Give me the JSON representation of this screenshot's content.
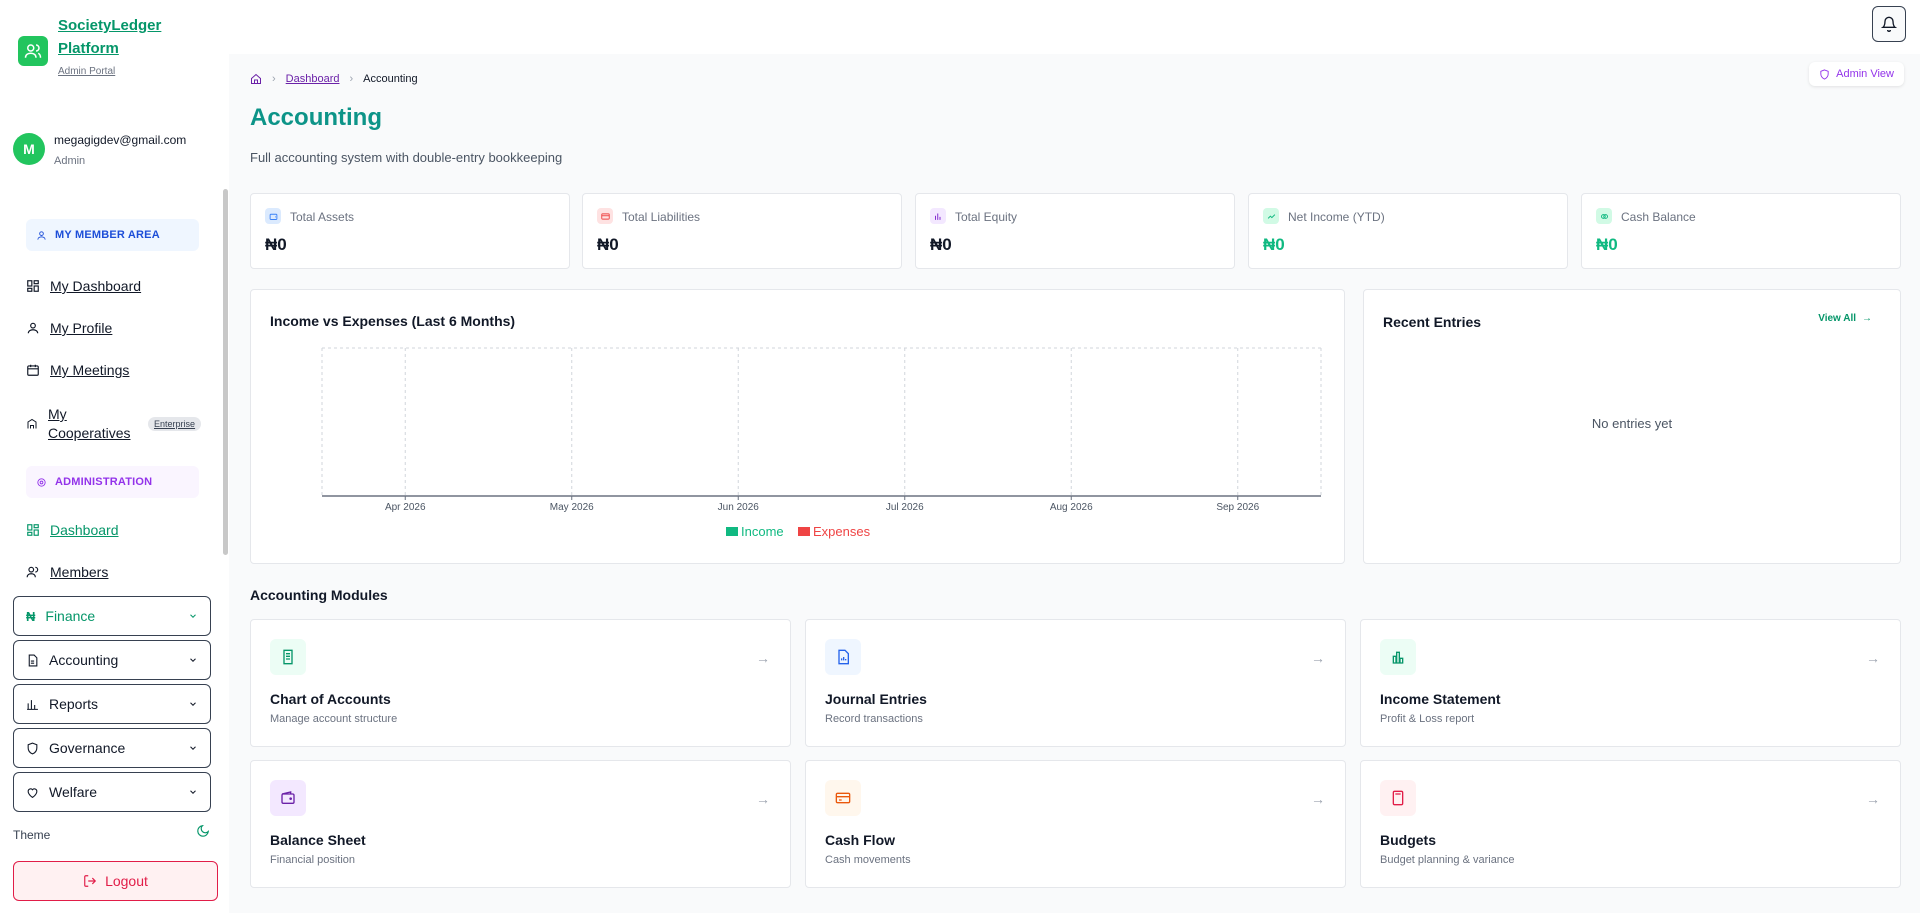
{
  "brand": {
    "title": "SocietyLedger Platform",
    "subtitle": "Admin Portal"
  },
  "user": {
    "initial": "M",
    "email": "megagigdev@gmail.com",
    "role": "Admin"
  },
  "sidebar": {
    "member_section": "MY MEMBER AREA",
    "member_items": [
      {
        "label": "My Dashboard",
        "icon": "grid-icon"
      },
      {
        "label": "My Profile",
        "icon": "user-icon"
      },
      {
        "label": "My Meetings",
        "icon": "calendar-icon"
      },
      {
        "label": "My Cooperatives",
        "icon": "building-icon",
        "badge": "Enterprise"
      }
    ],
    "admin_section": "ADMINISTRATION",
    "admin_items": [
      {
        "label": "Dashboard",
        "icon": "grid-icon"
      },
      {
        "label": "Members",
        "icon": "users-icon"
      }
    ],
    "dropdowns": [
      {
        "label": "Finance",
        "icon": "naira-icon"
      },
      {
        "label": "Accounting",
        "icon": "file-icon"
      },
      {
        "label": "Reports",
        "icon": "bar-chart-icon"
      },
      {
        "label": "Governance",
        "icon": "shield-icon"
      },
      {
        "label": "Welfare",
        "icon": "heart-icon"
      }
    ],
    "theme_label": "Theme",
    "logout_label": "Logout"
  },
  "header": {
    "admin_view": "Admin View"
  },
  "breadcrumb": {
    "home_icon": "home-icon",
    "parent": "Dashboard",
    "current": "Accounting"
  },
  "page": {
    "title": "Accounting",
    "subtitle": "Full accounting system with double-entry bookkeeping"
  },
  "stats": [
    {
      "label": "Total Assets",
      "value": "₦0",
      "color": "#3b82f6",
      "icon": "wallet-icon"
    },
    {
      "label": "Total Liabilities",
      "value": "₦0",
      "color": "#ef4444",
      "icon": "card-icon"
    },
    {
      "label": "Total Equity",
      "value": "₦0",
      "color": "#7e22ce",
      "icon": "bar-chart-icon"
    },
    {
      "label": "Net Income (YTD)",
      "value": "₦0",
      "color": "#10b981",
      "icon": "trending-up-icon"
    },
    {
      "label": "Cash Balance",
      "value": "₦0",
      "color": "#10b981",
      "icon": "cash-icon"
    }
  ],
  "chart_data": {
    "type": "bar",
    "title": "Income vs Expenses (Last 6 Months)",
    "categories": [
      "Apr 2026",
      "May 2026",
      "Jun 2026",
      "Jul 2026",
      "Aug 2026",
      "Sep 2026"
    ],
    "series": [
      {
        "name": "Income",
        "values": [
          0,
          0,
          0,
          0,
          0,
          0
        ],
        "color": "#10b981"
      },
      {
        "name": "Expenses",
        "values": [
          0,
          0,
          0,
          0,
          0,
          0
        ],
        "color": "#ef4444"
      }
    ],
    "xlabel": "",
    "ylabel": "",
    "grid": true,
    "legend": "bottom-center"
  },
  "recent": {
    "title": "Recent Entries",
    "view_all": "View All",
    "empty": "No entries yet"
  },
  "modules": {
    "title": "Accounting Modules",
    "items": [
      {
        "title": "Chart of Accounts",
        "desc": "Manage account structure",
        "icon": "document-icon",
        "bg": "#ecfdf5",
        "color": "#059669"
      },
      {
        "title": "Journal Entries",
        "desc": "Record transactions",
        "icon": "file-chart-icon",
        "bg": "#eff6ff",
        "color": "#2563eb"
      },
      {
        "title": "Income Statement",
        "desc": "Profit & Loss report",
        "icon": "bar-chart-icon",
        "bg": "#ecfdf5",
        "color": "#059669"
      },
      {
        "title": "Balance Sheet",
        "desc": "Financial position",
        "icon": "wallet-icon",
        "bg": "#f3e8ff",
        "color": "#6b21a8"
      },
      {
        "title": "Cash Flow",
        "desc": "Cash movements",
        "icon": "card-icon",
        "bg": "#fff7ed",
        "color": "#ea580c"
      },
      {
        "title": "Budgets",
        "desc": "Budget planning & variance",
        "icon": "calculator-icon",
        "bg": "#fff1f2",
        "color": "#e11d48"
      }
    ]
  }
}
